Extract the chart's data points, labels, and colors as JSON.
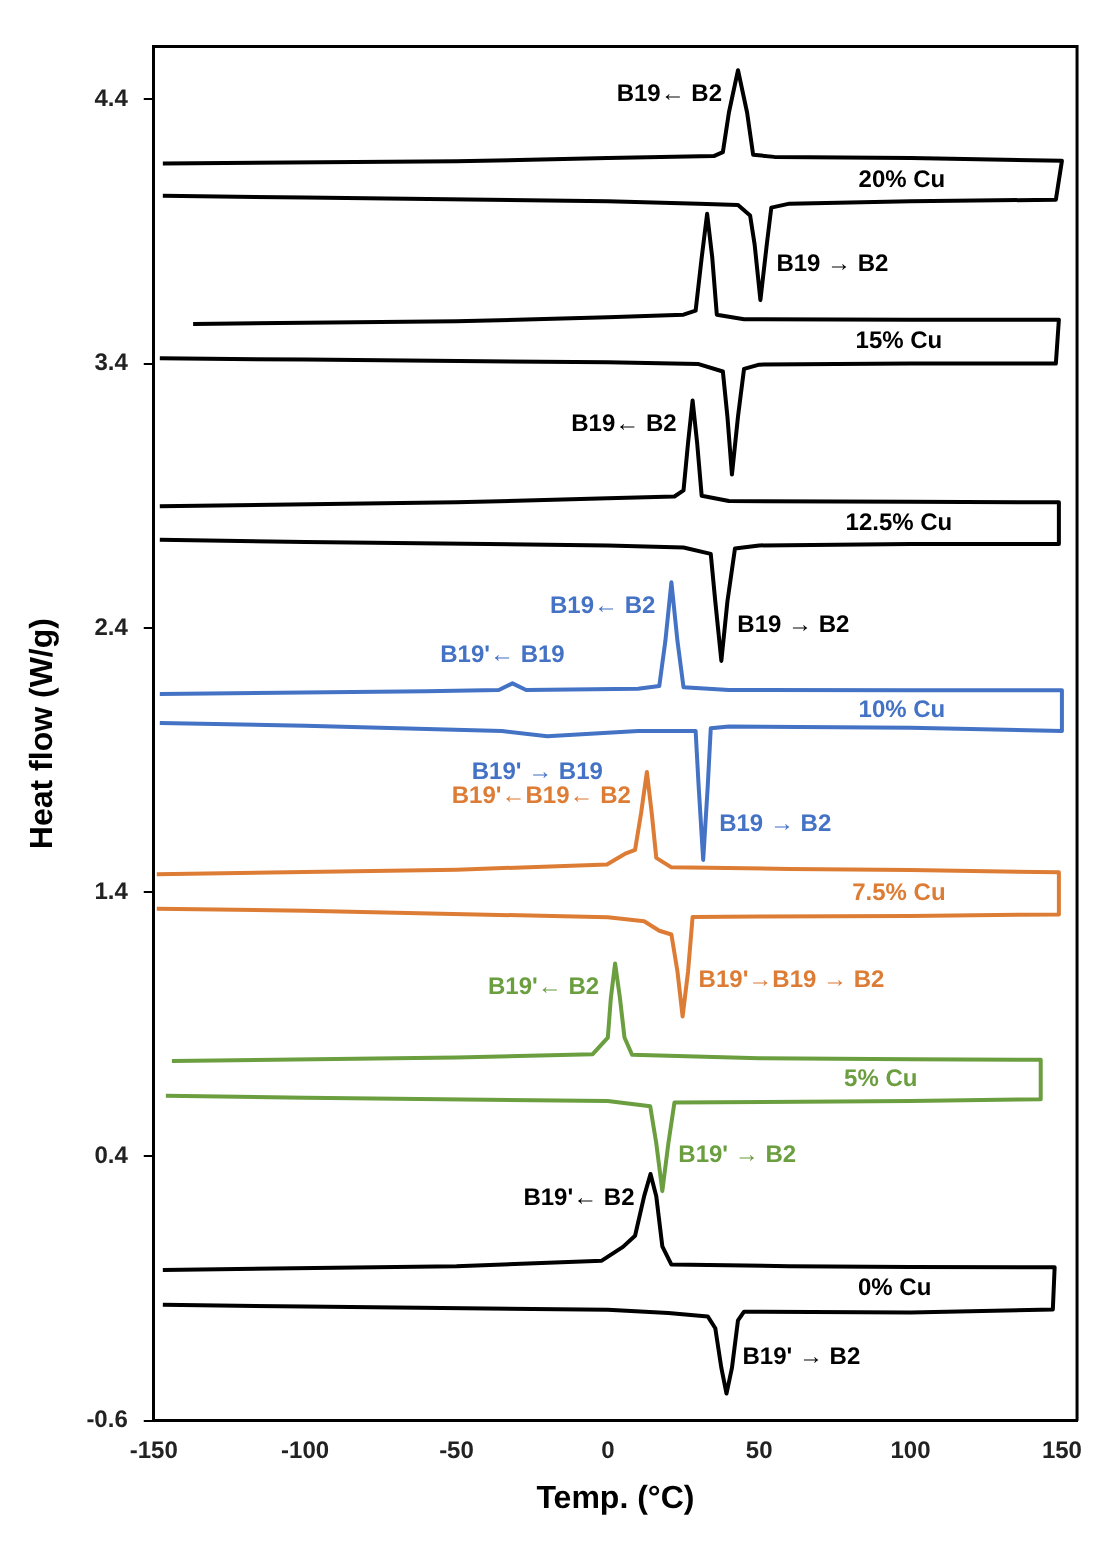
{
  "chart_data": {
    "type": "line",
    "xlabel": "Temp. (°C)",
    "ylabel": "Heat flow (W/g)",
    "xlim": [
      -150,
      155
    ],
    "xticks": [
      -150,
      -100,
      -50,
      0,
      50,
      100,
      150
    ],
    "ylim": [
      -0.6,
      4.6
    ],
    "yticks": [
      -0.6,
      0.4,
      1.4,
      2.4,
      3.4,
      4.4
    ],
    "grid": false,
    "legend": false,
    "series": [
      {
        "name": "20% Cu",
        "color": "#000000",
        "x": [
          -147,
          -50,
          0,
          35,
          38,
          40,
          43,
          46,
          48,
          55,
          100,
          150,
          148,
          100,
          60,
          54,
          52.5,
          50.4,
          48.5,
          47,
          43,
          30,
          0,
          -100,
          -147
        ],
        "values": [
          4.157,
          4.165,
          4.178,
          4.185,
          4.2,
          4.35,
          4.51,
          4.35,
          4.19,
          4.182,
          4.178,
          4.167,
          4.02,
          4.014,
          4.005,
          3.99,
          3.85,
          3.64,
          3.85,
          3.96,
          4.0,
          4.005,
          4.014,
          4.028,
          4.035
        ]
      },
      {
        "name": "15% Cu",
        "color": "#000000",
        "x": [
          -137,
          -50,
          0,
          25,
          29,
          31,
          32.8,
          34.5,
          36,
          45,
          100,
          149,
          148,
          100,
          50,
          45,
          43,
          41,
          39.5,
          38,
          30,
          0,
          -100,
          -148
        ],
        "values": [
          3.55,
          3.56,
          3.575,
          3.585,
          3.6,
          3.8,
          3.967,
          3.8,
          3.585,
          3.568,
          3.566,
          3.566,
          3.4,
          3.4,
          3.396,
          3.38,
          3.2,
          2.98,
          3.2,
          3.37,
          3.398,
          3.405,
          3.415,
          3.42
        ]
      },
      {
        "name": "12.5% Cu",
        "color": "#000000",
        "x": [
          -148,
          -50,
          0,
          22,
          25,
          26.5,
          28,
          29.5,
          31,
          40,
          100,
          149,
          149,
          100,
          50,
          42,
          39.5,
          37.5,
          35.5,
          34,
          25,
          0,
          -100,
          -148
        ],
        "values": [
          2.86,
          2.875,
          2.89,
          2.897,
          2.92,
          3.1,
          3.26,
          3.1,
          2.9,
          2.88,
          2.877,
          2.875,
          2.717,
          2.717,
          2.712,
          2.7,
          2.5,
          2.275,
          2.5,
          2.68,
          2.704,
          2.712,
          2.725,
          2.733
        ]
      },
      {
        "name": "10% Cu",
        "color": "#4472c4",
        "x": [
          -148,
          -60,
          -36,
          -31.5,
          -27,
          10,
          17,
          19,
          21,
          23,
          25,
          40,
          100,
          150,
          150,
          100,
          40,
          34,
          33,
          31.5,
          30,
          29,
          10,
          -20,
          -35,
          -100,
          -148
        ],
        "values": [
          2.15,
          2.16,
          2.165,
          2.19,
          2.165,
          2.17,
          2.18,
          2.35,
          2.573,
          2.35,
          2.175,
          2.165,
          2.164,
          2.164,
          2.01,
          2.022,
          2.027,
          2.02,
          1.8,
          1.522,
          1.8,
          2.01,
          2.01,
          1.99,
          2.01,
          2.03,
          2.04
        ]
      },
      {
        "name": "7.5% Cu",
        "color": "#dd7c35",
        "x": [
          -149,
          -50,
          -0.3,
          6,
          9,
          11,
          12.9,
          14.5,
          16,
          21,
          60,
          100,
          149,
          149,
          100,
          50,
          28,
          26.5,
          24.7,
          23,
          21,
          17,
          12,
          0,
          -100,
          -149
        ],
        "values": [
          1.468,
          1.485,
          1.505,
          1.547,
          1.56,
          1.7,
          1.855,
          1.7,
          1.53,
          1.494,
          1.488,
          1.484,
          1.475,
          1.316,
          1.31,
          1.308,
          1.306,
          1.1,
          0.93,
          1.1,
          1.24,
          1.254,
          1.29,
          1.305,
          1.33,
          1.337
        ]
      },
      {
        "name": "5% Cu",
        "color": "#6a9e3f",
        "x": [
          -144,
          -50,
          -5,
          0,
          1,
          2.4,
          4,
          5.5,
          8,
          50,
          100,
          143,
          143,
          100,
          22,
          20,
          18,
          16,
          14,
          0,
          -100,
          -146
        ],
        "values": [
          0.761,
          0.775,
          0.787,
          0.85,
          1.0,
          1.13,
          1.0,
          0.85,
          0.785,
          0.772,
          0.768,
          0.766,
          0.617,
          0.61,
          0.604,
          0.45,
          0.269,
          0.45,
          0.59,
          0.61,
          0.622,
          0.63
        ]
      },
      {
        "name": "0% Cu",
        "color": "#000000",
        "x": [
          -147,
          -50,
          -2,
          5,
          9,
          12,
          14.1,
          16,
          18,
          21,
          60,
          100,
          147.6,
          147,
          100,
          45,
          43,
          41,
          39.2,
          37.5,
          35.5,
          33,
          20,
          0,
          -100,
          -147
        ],
        "values": [
          -0.029,
          -0.015,
          0.006,
          0.058,
          0.1,
          0.25,
          0.334,
          0.25,
          0.06,
          -0.009,
          -0.015,
          -0.018,
          -0.019,
          -0.179,
          -0.19,
          -0.187,
          -0.22,
          -0.4,
          -0.497,
          -0.4,
          -0.25,
          -0.205,
          -0.192,
          -0.18,
          -0.168,
          -0.161
        ]
      }
    ],
    "annotations": [
      {
        "text": "B19← B2",
        "x": 43,
        "y": 4.51
      },
      {
        "text": "B19 → B2",
        "x": 50.4,
        "y": 3.64
      },
      {
        "text": "B19← B2",
        "x": 28,
        "y": 3.26
      },
      {
        "text": "B19 → B2",
        "x": 37.5,
        "y": 2.275
      },
      {
        "text": "B19← B2",
        "x": 21,
        "y": 2.573
      },
      {
        "text": "B19'← B19",
        "x": -31.5,
        "y": 2.19
      },
      {
        "text": "B19' → B19",
        "x": -20,
        "y": 1.99
      },
      {
        "text": "B19 → B2",
        "x": 31.5,
        "y": 1.522
      },
      {
        "text": "B19'←B19← B2",
        "x": 12.9,
        "y": 1.855
      },
      {
        "text": "B19'→B19 → B2",
        "x": 24.7,
        "y": 0.93
      },
      {
        "text": "B19'← B2",
        "x": 2.4,
        "y": 1.13
      },
      {
        "text": "B19' → B2",
        "x": 18,
        "y": 0.269
      },
      {
        "text": "B19'← B2",
        "x": 14.1,
        "y": 0.334
      },
      {
        "text": "B19' → B2",
        "x": 39.2,
        "y": -0.497
      }
    ]
  }
}
